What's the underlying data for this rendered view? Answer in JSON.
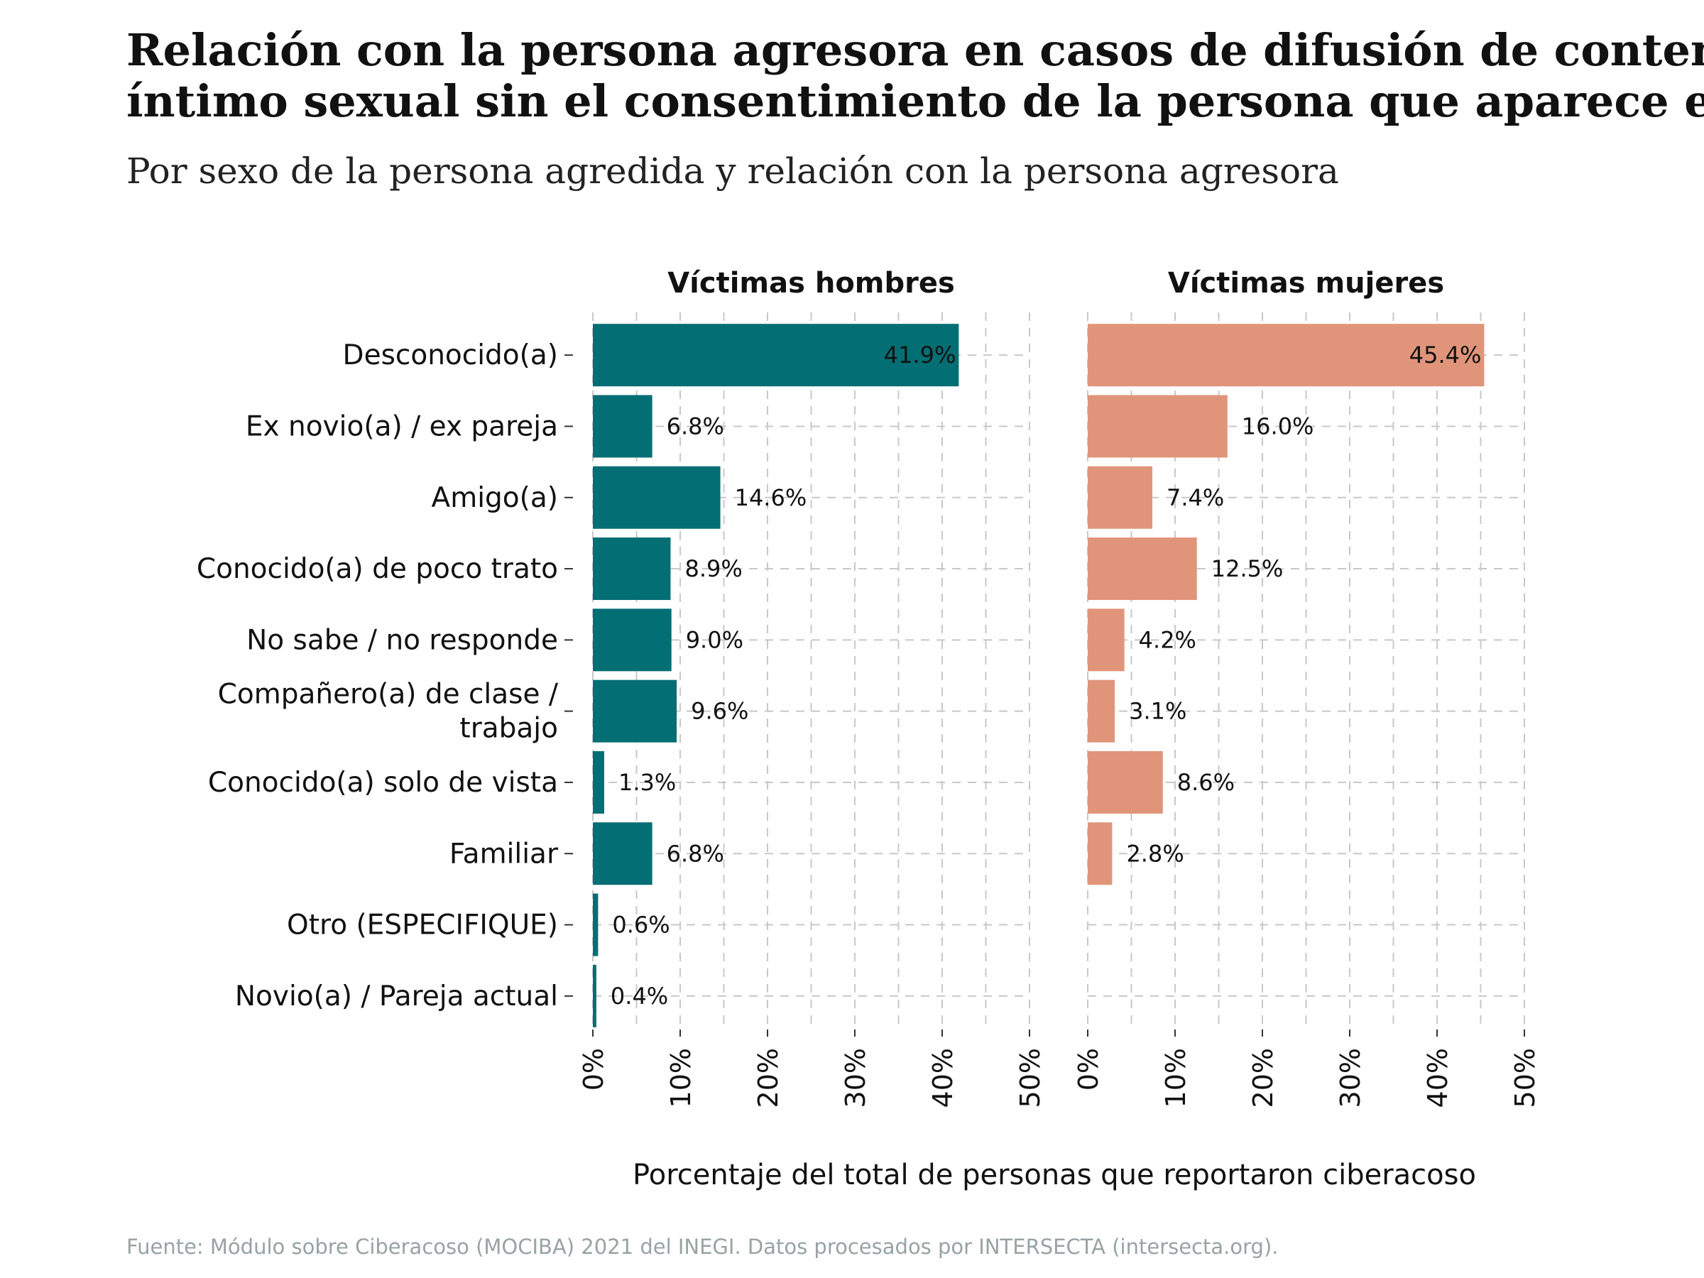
{
  "chart_data": {
    "type": "bar",
    "orientation": "horizontal",
    "title_lines": [
      "Relación con la persona agresora en casos de difusión de contenido",
      "íntimo sexual sin el consentimiento de la persona que aparece en él"
    ],
    "subtitle": "Por sexo de la persona agredida y relación con la persona agresora",
    "xlabel": "Porcentaje del total de personas que reportaron ciberacoso",
    "source": "Fuente: Módulo sobre Ciberacoso (MOCIBA) 2021 del INEGI. Datos procesados por INTERSECTA (intersecta.org).",
    "categories": [
      [
        "Desconocido(a)"
      ],
      [
        "Ex novio(a) / ex pareja"
      ],
      [
        "Amigo(a)"
      ],
      [
        "Conocido(a) de poco trato"
      ],
      [
        "No sabe / no responde"
      ],
      [
        "Compañero(a) de clase /",
        "trabajo"
      ],
      [
        "Conocido(a) solo de vista"
      ],
      [
        "Familiar"
      ],
      [
        "Otro (ESPECIFIQUE)"
      ],
      [
        "Novio(a) / Pareja actual"
      ]
    ],
    "xlim": [
      0,
      50
    ],
    "x_ticks": [
      "0%",
      "10%",
      "20%",
      "30%",
      "40%",
      "50%"
    ],
    "grid": true,
    "series": [
      {
        "name": "Víctimas hombres",
        "color": "#036e73",
        "values": [
          41.9,
          6.8,
          14.6,
          8.9,
          9.0,
          9.6,
          1.3,
          6.8,
          0.6,
          0.4
        ],
        "labels": [
          "41.9%",
          "6.8%",
          "14.6%",
          "8.9%",
          "9.0%",
          "9.6%",
          "1.3%",
          "6.8%",
          "0.6%",
          "0.4%"
        ]
      },
      {
        "name": "Víctimas mujeres",
        "color": "#e0957b",
        "values": [
          45.4,
          16.0,
          7.4,
          12.5,
          4.2,
          3.1,
          8.6,
          2.8,
          null,
          null
        ],
        "labels": [
          "45.4%",
          "16.0%",
          "7.4%",
          "12.5%",
          "4.2%",
          "3.1%",
          "8.6%",
          "2.8%",
          "",
          ""
        ]
      }
    ]
  }
}
